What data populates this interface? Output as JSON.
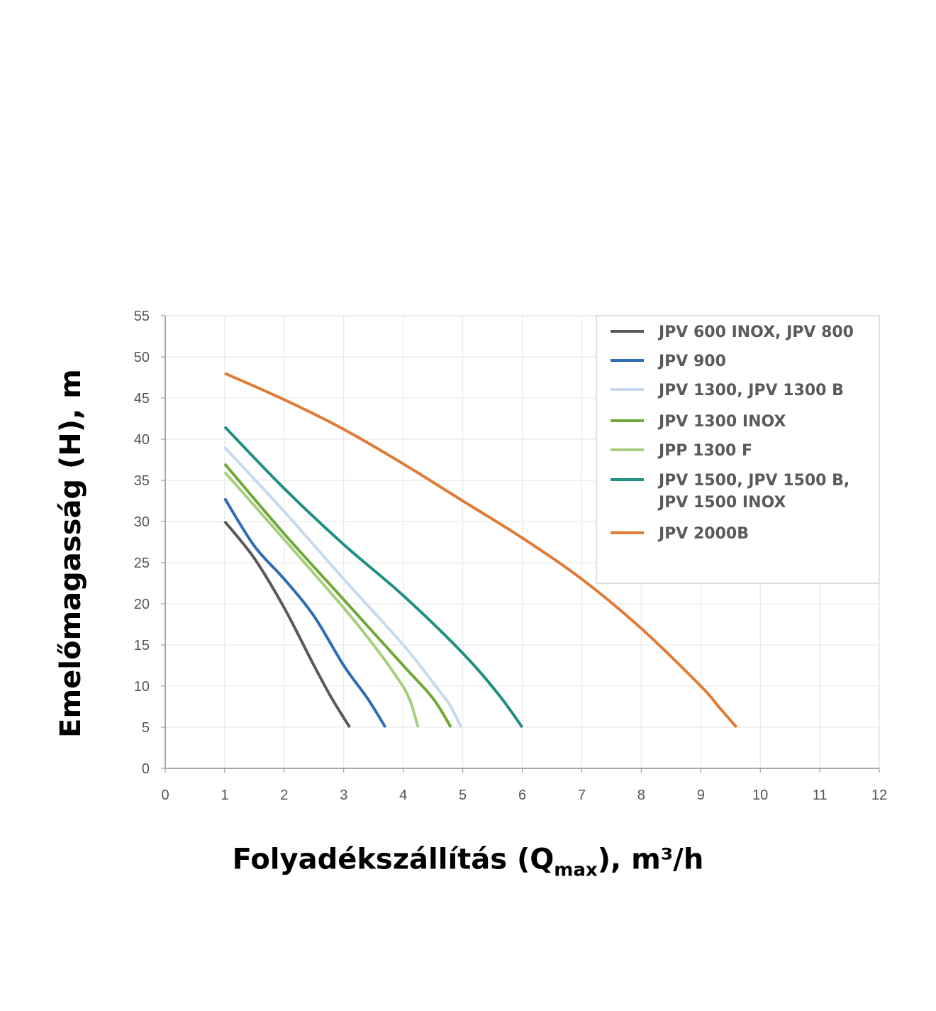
{
  "chart_data": {
    "type": "line",
    "xlabel_prefix": "Folyadékszállítás (Q",
    "xlabel_sub": "max",
    "xlabel_suffix": "), m³/h",
    "ylabel": "Emelőmagasság (H), m",
    "xlim": [
      0,
      12
    ],
    "ylim": [
      0,
      55
    ],
    "xticks": [
      0,
      1,
      2,
      3,
      4,
      5,
      6,
      7,
      8,
      9,
      10,
      11,
      12
    ],
    "yticks": [
      0,
      5,
      10,
      15,
      20,
      25,
      30,
      35,
      40,
      45,
      50,
      55
    ],
    "grid": true,
    "legend_position": "top-right",
    "series": [
      {
        "name": "JPV 600 INOX, JPV 800",
        "color": "#595959",
        "points": [
          [
            1,
            30
          ],
          [
            1.5,
            25.5
          ],
          [
            2,
            19.5
          ],
          [
            2.5,
            12.5
          ],
          [
            2.8,
            8.5
          ],
          [
            3.1,
            5
          ]
        ]
      },
      {
        "name": "JPV 900",
        "color": "#2e6db4",
        "points": [
          [
            1,
            32.8
          ],
          [
            1.5,
            27
          ],
          [
            2,
            23
          ],
          [
            2.5,
            18.5
          ],
          [
            3,
            12.5
          ],
          [
            3.4,
            8.5
          ],
          [
            3.7,
            5
          ]
        ]
      },
      {
        "name": "JPV 1300, JPV 1300 B",
        "color": "#c5d9ef",
        "points": [
          [
            1,
            39
          ],
          [
            2,
            31.2
          ],
          [
            3,
            23
          ],
          [
            4,
            15
          ],
          [
            4.6,
            9.5
          ],
          [
            4.8,
            7.5
          ],
          [
            4.97,
            5
          ]
        ]
      },
      {
        "name": "JPV 1300 INOX",
        "color": "#70a83a",
        "points": [
          [
            1,
            37
          ],
          [
            2,
            28.5
          ],
          [
            3,
            20.5
          ],
          [
            4,
            12.5
          ],
          [
            4.5,
            8.5
          ],
          [
            4.8,
            5
          ]
        ]
      },
      {
        "name": "JPP 1300 F",
        "color": "#a6cf7e",
        "points": [
          [
            1,
            36
          ],
          [
            2,
            27.8
          ],
          [
            3,
            19.5
          ],
          [
            3.5,
            15
          ],
          [
            3.9,
            11
          ],
          [
            4.1,
            8.5
          ],
          [
            4.25,
            5
          ]
        ]
      },
      {
        "name": "JPV 1500, JPV 1500 B,\nJPV 1500 INOX",
        "color": "#1e8f80",
        "points": [
          [
            1,
            41.5
          ],
          [
            2,
            34
          ],
          [
            3,
            27.2
          ],
          [
            4,
            21
          ],
          [
            5,
            14
          ],
          [
            5.6,
            9
          ],
          [
            6,
            5
          ]
        ]
      },
      {
        "name": "JPV 2000B",
        "color": "#e07b35",
        "points": [
          [
            1,
            48
          ],
          [
            2,
            44.8
          ],
          [
            3,
            41.2
          ],
          [
            4,
            37
          ],
          [
            5,
            32.5
          ],
          [
            6,
            28
          ],
          [
            7,
            23
          ],
          [
            8,
            17
          ],
          [
            9,
            10
          ],
          [
            9.3,
            7.5
          ],
          [
            9.6,
            5
          ]
        ]
      }
    ]
  }
}
